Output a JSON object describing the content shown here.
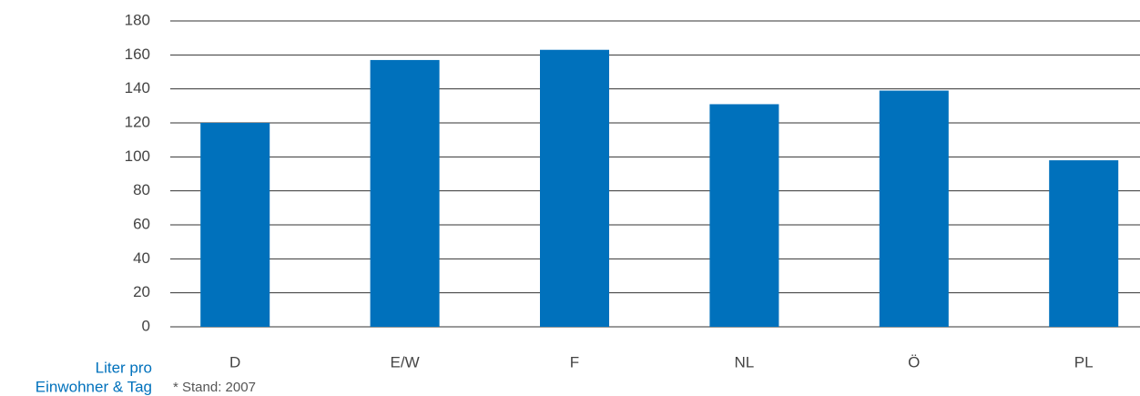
{
  "chart_data": {
    "type": "bar",
    "categories": [
      "D",
      "E/W",
      "F",
      "NL",
      "Ö",
      "PL"
    ],
    "values": [
      120,
      157,
      163,
      131,
      139,
      98
    ],
    "color": "#0071bc",
    "ylim": [
      0,
      180
    ],
    "yticks": [
      0,
      20,
      40,
      60,
      80,
      100,
      120,
      140,
      160,
      180
    ],
    "grid": true,
    "y_label": [
      "Liter pro",
      "Einwohner & Tag"
    ],
    "footnote": "* Stand: 2007"
  }
}
